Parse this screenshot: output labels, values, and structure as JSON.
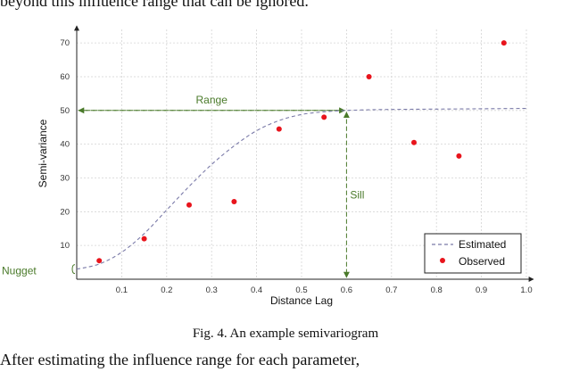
{
  "document": {
    "top_text": "beyond this influence range that can be ignored.",
    "bottom_text": "After estimating the influence range for each parameter,",
    "caption": "Fig. 4.   An example semivariogram"
  },
  "chart_data": {
    "type": "scatter",
    "xlabel": "Distance Lag",
    "ylabel": "Semi-variance",
    "xlim": [
      0,
      1.0
    ],
    "ylim": [
      0,
      74
    ],
    "x_ticks": [
      "0.1",
      "0.2",
      "0.3",
      "0.4",
      "0.5",
      "0.6",
      "0.7",
      "0.8",
      "0.9",
      "1.0"
    ],
    "y_ticks": [
      "10",
      "20",
      "30",
      "40",
      "50",
      "60",
      "70"
    ],
    "grid": true,
    "legend_position": "bottom-right",
    "series": [
      {
        "name": "Estimated",
        "kind": "dashed-line",
        "color": "#7a7aa8",
        "x": [
          0.0,
          0.05,
          0.1,
          0.15,
          0.2,
          0.25,
          0.3,
          0.35,
          0.4,
          0.45,
          0.5,
          0.55,
          0.6,
          0.65,
          0.7,
          0.8,
          0.9,
          1.0
        ],
        "y": [
          3,
          4.5,
          8,
          13.5,
          20.5,
          27.5,
          34,
          39.5,
          44,
          47,
          48.8,
          49.6,
          50,
          50.2,
          50.3,
          50.4,
          50.5,
          50.6
        ]
      },
      {
        "name": "Observed",
        "kind": "points",
        "color": "#e8141c",
        "x": [
          0.05,
          0.15,
          0.25,
          0.35,
          0.45,
          0.55,
          0.65,
          0.75,
          0.85,
          0.95
        ],
        "y": [
          5.5,
          12,
          22,
          23,
          44.5,
          48,
          60,
          40.5,
          36.5,
          70
        ]
      }
    ],
    "annotations": {
      "range_label": "Range",
      "sill_label": "Sill",
      "nugget_label": "Nugget",
      "range_value": 0.6,
      "sill_value": 50,
      "nugget_value": 3,
      "color": "#4a7a2a"
    }
  }
}
